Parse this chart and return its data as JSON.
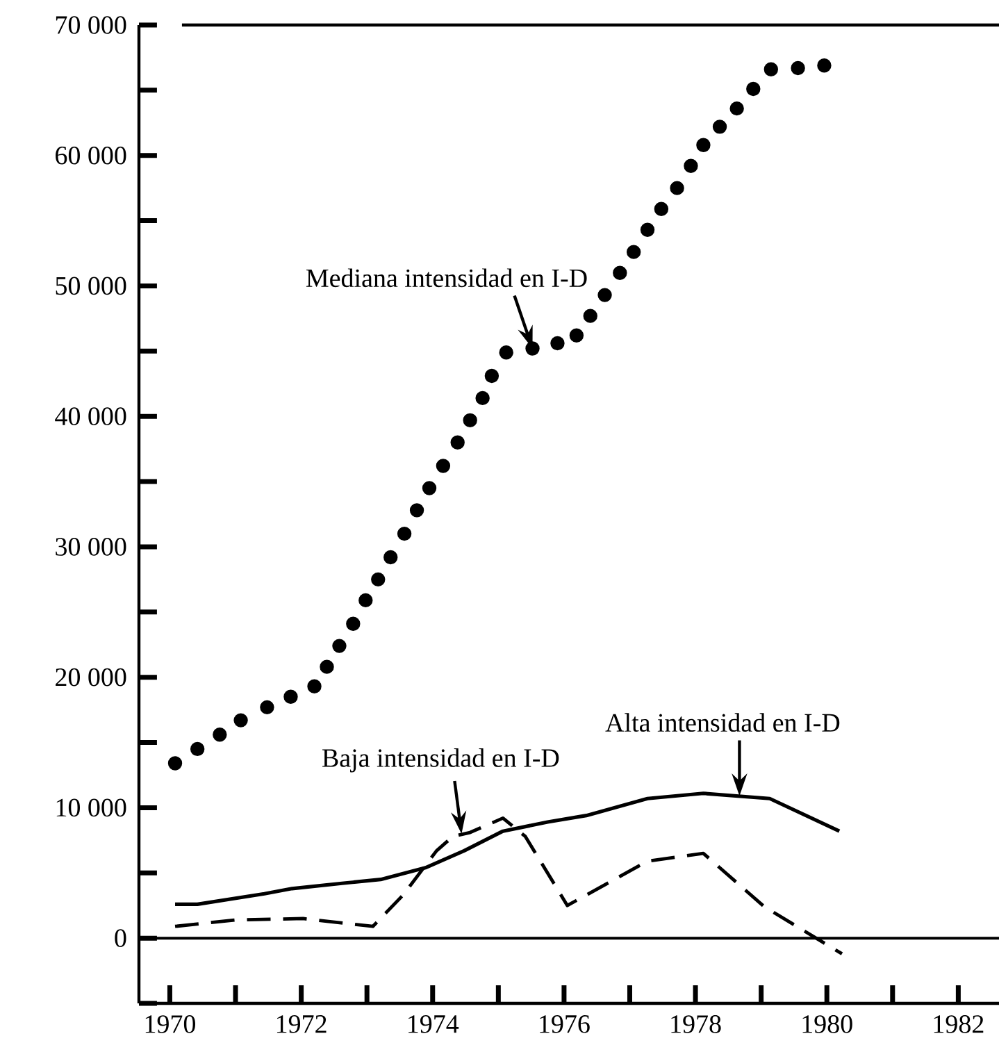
{
  "chart_data": {
    "type": "line",
    "xlim": [
      1969.53,
      1982.62
    ],
    "ylim": [
      -5000,
      70000
    ],
    "xticks": [
      1970,
      {
        "value": 1971,
        "label": null
      },
      1972,
      {
        "value": 1973,
        "label": null
      },
      1974,
      {
        "value": 1975,
        "label": null
      },
      1976,
      {
        "value": 1977,
        "label": null
      },
      1978,
      {
        "value": 1979,
        "label": null
      },
      1980,
      {
        "value": 1981,
        "label": null
      },
      1982
    ],
    "yticks": [
      {
        "value": -5000,
        "label": null
      },
      0,
      {
        "value": 5000,
        "label": null
      },
      {
        "value": 10000,
        "label": "10 000"
      },
      {
        "value": 15000,
        "label": null
      },
      {
        "value": 20000,
        "label": "20 000"
      },
      {
        "value": 25000,
        "label": null
      },
      {
        "value": 30000,
        "label": "30 000"
      },
      {
        "value": 35000,
        "label": null
      },
      {
        "value": 40000,
        "label": "40 000"
      },
      {
        "value": 45000,
        "label": null
      },
      {
        "value": 50000,
        "label": "50 000"
      },
      {
        "value": 55000,
        "label": null
      },
      {
        "value": 60000,
        "label": "60 000"
      },
      {
        "value": 65000,
        "label": null
      },
      {
        "value": 70000,
        "label": "70 000"
      }
    ],
    "marker": "none",
    "ref_lines": [
      {
        "axis": "y",
        "value": 0
      }
    ],
    "series": [
      {
        "type": "scatter",
        "marker": "circle",
        "color": "#000000",
        "x": [
          1970.08,
          1970.42,
          1970.76,
          1971.08,
          1971.48,
          1971.84,
          1972.2,
          1972.39,
          1972.58,
          1972.79,
          1972.98,
          1973.17,
          1973.36,
          1973.57,
          1973.76,
          1973.95,
          1974.16,
          1974.38,
          1974.57,
          1974.76,
          1974.9,
          1975.12,
          1975.52,
          1975.9,
          1976.19,
          1976.4,
          1976.62,
          1976.85,
          1977.06,
          1977.27,
          1977.48,
          1977.72,
          1977.93,
          1978.12,
          1978.37,
          1978.63,
          1978.88,
          1979.15,
          1979.56,
          1979.96
        ],
        "values": [
          13400,
          14500,
          15600,
          16700,
          17700,
          18500,
          19300,
          20800,
          22400,
          24100,
          25900,
          27500,
          29200,
          31000,
          32800,
          34500,
          36200,
          38000,
          39700,
          41400,
          43100,
          44900,
          45200,
          45600,
          46200,
          47700,
          49300,
          51000,
          52600,
          54300,
          55900,
          57500,
          59200,
          60800,
          62200,
          63600,
          65100,
          66600,
          66700,
          66900
        ]
      },
      {
        "color": "#000000",
        "line_style": "solid",
        "x": [
          1970.08,
          1970.42,
          1971.44,
          1971.86,
          1972.62,
          1973.21,
          1973.89,
          1974.48,
          1975.07,
          1975.75,
          1976.34,
          1977.27,
          1978.12,
          1979.13,
          1980.19
        ],
        "values": [
          2600,
          2600,
          3400,
          3800,
          4200,
          4500,
          5400,
          6700,
          8200,
          8900,
          9400,
          10700,
          11100,
          10700,
          8200
        ]
      },
      {
        "color": "#000000",
        "line_style": "dashed",
        "x": [
          1970.08,
          1971.01,
          1972.03,
          1973.09,
          1973.55,
          1974.06,
          1974.31,
          1974.57,
          1975.07,
          1975.41,
          1976.05,
          1977.27,
          1978.12,
          1979.05,
          1980.23
        ],
        "values": [
          900,
          1400,
          1500,
          900,
          3300,
          6700,
          7800,
          8100,
          9200,
          7800,
          2500,
          5900,
          6500,
          2400,
          -1200
        ]
      }
    ],
    "annotations": [
      {
        "text": "Mediana intensidad en I-D",
        "x": 1975.52,
        "y": 45200
      },
      {
        "text": "Alta intensidad en I-D",
        "x": 1978.67,
        "y": 10900
      },
      {
        "text": "Baja intensidad en I-D",
        "x": 1974.44,
        "y": 8000
      }
    ]
  }
}
